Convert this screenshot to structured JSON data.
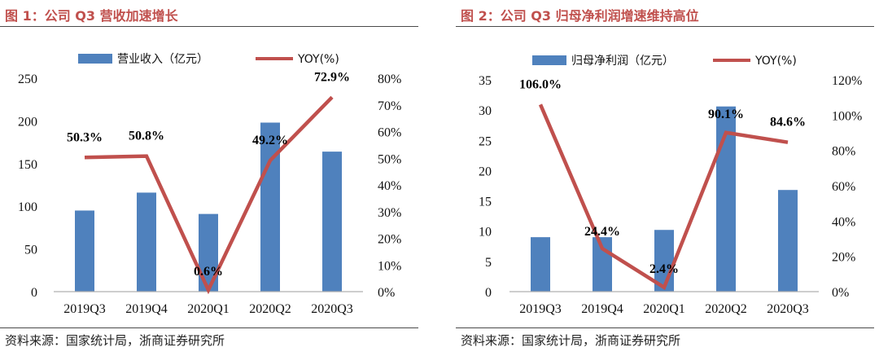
{
  "colors": {
    "bar": "#4f81bd",
    "line": "#c0504d",
    "title": "#c0504d",
    "axis": "#b0b0b0"
  },
  "left": {
    "title": "图 1：公司 Q3 营收加速增长",
    "source": "资料来源：国家统计局，浙商证券研究所",
    "chart_data": {
      "type": "bar",
      "title": "",
      "categories": [
        "2019Q3",
        "2019Q4",
        "2020Q1",
        "2020Q2",
        "2020Q3"
      ],
      "series": [
        {
          "name": "营业收入（亿元）",
          "type": "bar",
          "axis": "left",
          "values": [
            95,
            116,
            91,
            198,
            164
          ]
        },
        {
          "name": "YOY(%)",
          "type": "line",
          "axis": "right",
          "values": [
            50.3,
            50.8,
            0.6,
            49.2,
            72.9
          ],
          "labels": [
            "50.3%",
            "50.8%",
            "0.6%",
            "49.2%",
            "72.9%"
          ]
        }
      ],
      "y_left": {
        "range": [
          0,
          250
        ],
        "ticks": [
          0,
          50,
          100,
          150,
          200,
          250
        ],
        "tick_labels": [
          "0",
          "50",
          "100",
          "150",
          "200",
          "250"
        ]
      },
      "y_right": {
        "range": [
          0,
          80
        ],
        "ticks": [
          0,
          10,
          20,
          30,
          40,
          50,
          60,
          70,
          80
        ],
        "tick_labels": [
          "0%",
          "10%",
          "20%",
          "30%",
          "40%",
          "50%",
          "60%",
          "70%",
          "80%"
        ]
      },
      "legend": "top",
      "grid": false
    }
  },
  "right": {
    "title": "图 2：公司 Q3 归母净利润增速维持高位",
    "source": "资料来源：国家统计局，浙商证券研究所",
    "chart_data": {
      "type": "bar",
      "title": "",
      "categories": [
        "2019Q3",
        "2019Q4",
        "2020Q1",
        "2020Q2",
        "2020Q3"
      ],
      "series": [
        {
          "name": "归母净利润（亿元）",
          "type": "bar",
          "axis": "left",
          "values": [
            9.0,
            9.0,
            10.2,
            30.6,
            16.8
          ]
        },
        {
          "name": "YOY(%)",
          "type": "line",
          "axis": "right",
          "values": [
            106.0,
            24.4,
            2.4,
            90.1,
            84.6
          ],
          "labels": [
            "106.0%",
            "24.4%",
            "2.4%",
            "90.1%",
            "84.6%"
          ]
        }
      ],
      "y_left": {
        "range": [
          0,
          35
        ],
        "ticks": [
          0,
          5,
          10,
          15,
          20,
          25,
          30,
          35
        ],
        "tick_labels": [
          "0",
          "5",
          "10",
          "15",
          "20",
          "25",
          "30",
          "35"
        ]
      },
      "y_right": {
        "range": [
          0,
          120
        ],
        "ticks": [
          0,
          20,
          40,
          60,
          80,
          100,
          120
        ],
        "tick_labels": [
          "0%",
          "20%",
          "40%",
          "60%",
          "80%",
          "100%",
          "120%"
        ]
      },
      "legend": "top",
      "grid": false
    }
  }
}
